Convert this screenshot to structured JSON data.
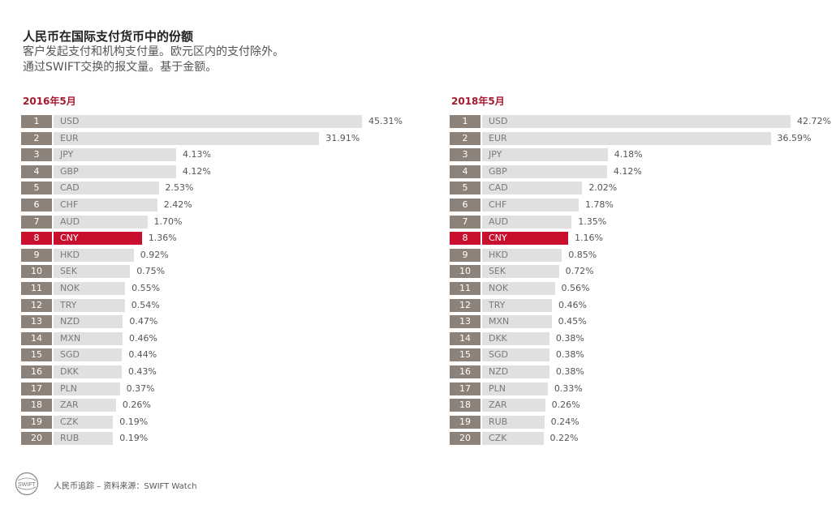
{
  "header": {
    "title": "人民币在国际支付货币中的份额",
    "subtitle1": "客户发起支付和机构支付量。欧元区内的支付除外。",
    "subtitle2": "通过SWIFT交换的报文量。基于金额。"
  },
  "footer": {
    "text": "人民币追踪 – 资料来源：SWIFT Watch",
    "logo_text": "SWIFT"
  },
  "colors": {
    "accent": "#c8102e",
    "title_red": "#a6192e",
    "rank_bg": "#8c8279",
    "bar_bg": "#e2e0de"
  },
  "chart_data": [
    {
      "type": "bar",
      "orientation": "horizontal",
      "title": "2016年5月",
      "highlight": "CNY",
      "unit": "%",
      "ranks": [
        "1",
        "2",
        "3",
        "4",
        "5",
        "6",
        "7",
        "8",
        "9",
        "10",
        "11",
        "12",
        "13",
        "14",
        "15",
        "16",
        "17",
        "18",
        "19",
        "20"
      ],
      "categories": [
        "USD",
        "EUR",
        "JPY",
        "GBP",
        "CAD",
        "CHF",
        "AUD",
        "CNY",
        "HKD",
        "SEK",
        "NOK",
        "TRY",
        "NZD",
        "MXN",
        "SGD",
        "DKK",
        "PLN",
        "ZAR",
        "CZK",
        "RUB"
      ],
      "labels": [
        "45.31%",
        "31.91%",
        "4.13%",
        "4.12%",
        "2.53%",
        "2.42%",
        "1.70%",
        "1.36%",
        "0.92%",
        "0.75%",
        "0.55%",
        "0.54%",
        "0.47%",
        "0.46%",
        "0.44%",
        "0.43%",
        "0.37%",
        "0.26%",
        "0.19%",
        "0.19%"
      ],
      "values": [
        45.31,
        31.91,
        4.13,
        4.12,
        2.53,
        2.42,
        1.7,
        1.36,
        0.92,
        0.75,
        0.55,
        0.54,
        0.47,
        0.46,
        0.44,
        0.43,
        0.37,
        0.26,
        0.19,
        0.19
      ]
    },
    {
      "type": "bar",
      "orientation": "horizontal",
      "title": "2018年5月",
      "highlight": "CNY",
      "unit": "%",
      "ranks": [
        "1",
        "2",
        "3",
        "4",
        "5",
        "6",
        "7",
        "8",
        "9",
        "10",
        "11",
        "12",
        "13",
        "14",
        "15",
        "16",
        "17",
        "18",
        "19",
        "20"
      ],
      "categories": [
        "USD",
        "EUR",
        "JPY",
        "GBP",
        "CAD",
        "CHF",
        "AUD",
        "CNY",
        "HKD",
        "SEK",
        "NOK",
        "TRY",
        "MXN",
        "DKK",
        "SGD",
        "NZD",
        "PLN",
        "ZAR",
        "RUB",
        "CZK"
      ],
      "labels": [
        "42.72%",
        "36.59%",
        "4.18%",
        "4.12%",
        "2.02%",
        "1.78%",
        "1.35%",
        "1.16%",
        "0.85%",
        "0.72%",
        "0.56%",
        "0.46%",
        "0.45%",
        "0.38%",
        "0.38%",
        "0.38%",
        "0.33%",
        "0.26%",
        "0.24%",
        "0.22%"
      ],
      "values": [
        42.72,
        36.59,
        4.18,
        4.12,
        2.02,
        1.78,
        1.35,
        1.16,
        0.85,
        0.72,
        0.56,
        0.46,
        0.45,
        0.38,
        0.38,
        0.38,
        0.33,
        0.26,
        0.24,
        0.22
      ]
    }
  ]
}
